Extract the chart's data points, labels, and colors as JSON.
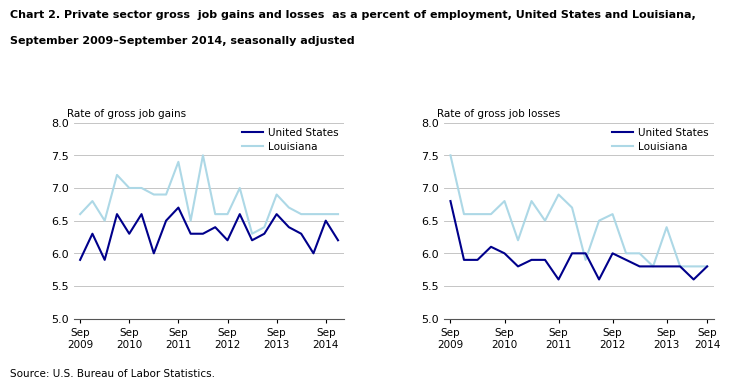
{
  "title_line1": "Chart 2. Private sector gross  job gains and losses  as a percent of employment, United States and Louisiana,",
  "title_line2": "September 2009–September 2014, seasonally adjusted",
  "source": "Source: U.S. Bureau of Labor Statistics.",
  "left_ylabel": "Rate of gross job gains",
  "right_ylabel": "Rate of gross job losses",
  "ylim": [
    5.0,
    8.0
  ],
  "yticks": [
    5.0,
    5.5,
    6.0,
    6.5,
    7.0,
    7.5,
    8.0
  ],
  "xtick_labels": [
    "Sep\n2009",
    "Sep\n2010",
    "Sep\n2011",
    "Sep\n2012",
    "Sep\n2013",
    "Sep\n2014"
  ],
  "xtick_positions": [
    0,
    4,
    8,
    12,
    16,
    20
  ],
  "us_color": "#00008B",
  "la_color": "#ADD8E6",
  "gains_us": [
    5.9,
    6.3,
    5.9,
    6.6,
    6.3,
    6.6,
    6.0,
    6.5,
    6.7,
    6.3,
    6.3,
    6.4,
    6.2,
    6.6,
    6.2,
    6.3,
    6.6,
    6.4,
    6.3,
    6.0,
    6.5,
    6.2
  ],
  "gains_la": [
    6.6,
    6.8,
    6.5,
    7.2,
    7.0,
    7.0,
    6.9,
    6.9,
    7.4,
    6.5,
    7.5,
    6.6,
    6.6,
    7.0,
    6.3,
    6.4,
    6.9,
    6.7,
    6.6,
    6.6,
    6.6,
    6.6
  ],
  "losses_us": [
    6.8,
    5.9,
    5.9,
    6.1,
    6.0,
    5.8,
    5.9,
    5.9,
    5.6,
    6.0,
    6.0,
    5.6,
    6.0,
    5.9,
    5.8,
    5.8,
    5.8,
    5.8,
    5.6,
    5.8
  ],
  "losses_la": [
    7.5,
    6.6,
    6.6,
    6.6,
    6.8,
    6.2,
    6.8,
    6.5,
    6.9,
    6.7,
    5.9,
    6.5,
    6.6,
    6.0,
    6.0,
    5.8,
    6.4,
    5.8,
    5.8,
    5.8
  ],
  "losses_xtick_positions": [
    0,
    4,
    8,
    12,
    16,
    19
  ],
  "losses_xtick_labels": [
    "Sep\n2009",
    "Sep\n2010",
    "Sep\n2011",
    "Sep\n2012",
    "Sep\n2013",
    "Sep\n2014"
  ]
}
